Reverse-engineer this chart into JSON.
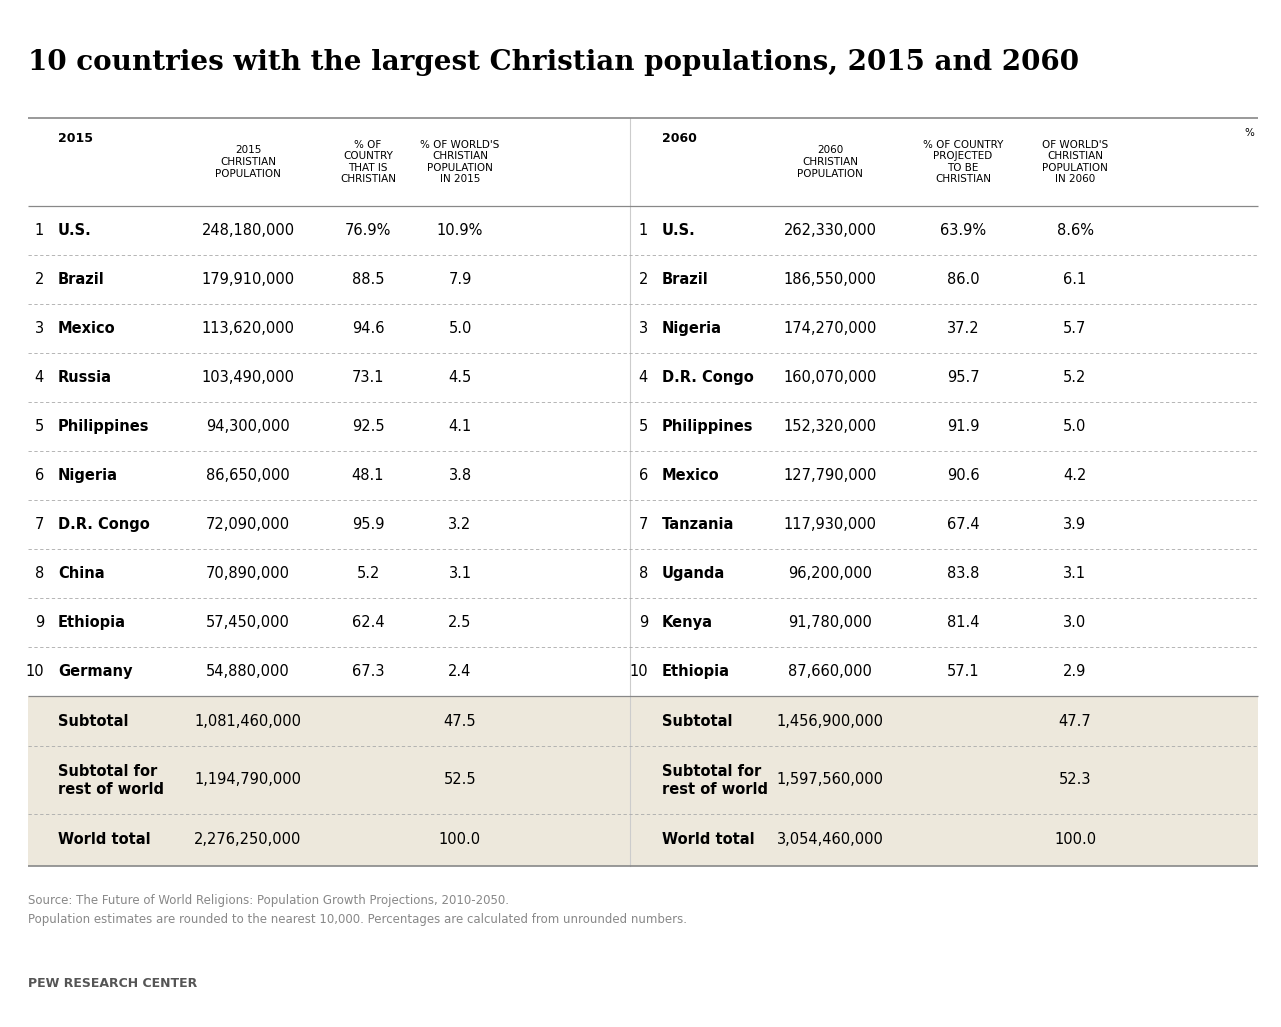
{
  "title": "10 countries with the largest Christian populations, 2015 and 2060",
  "bg_color": "#ffffff",
  "table_bg_color": "#ede8dc",
  "row_bg_white": "#ffffff",
  "title_color": "#000000",
  "source_text": "Source: The Future of World Religions: Population Growth Projections, 2010-2050.\nPopulation estimates are rounded to the nearest 10,000. Percentages are calculated from unrounded numbers.",
  "footer_text": "PEW RESEARCH CENTER",
  "rows_2015": [
    [
      "1",
      "U.S.",
      "248,180,000",
      "76.9%",
      "10.9%"
    ],
    [
      "2",
      "Brazil",
      "179,910,000",
      "88.5",
      "7.9"
    ],
    [
      "3",
      "Mexico",
      "113,620,000",
      "94.6",
      "5.0"
    ],
    [
      "4",
      "Russia",
      "103,490,000",
      "73.1",
      "4.5"
    ],
    [
      "5",
      "Philippines",
      "94,300,000",
      "92.5",
      "4.1"
    ],
    [
      "6",
      "Nigeria",
      "86,650,000",
      "48.1",
      "3.8"
    ],
    [
      "7",
      "D.R. Congo",
      "72,090,000",
      "95.9",
      "3.2"
    ],
    [
      "8",
      "China",
      "70,890,000",
      "5.2",
      "3.1"
    ],
    [
      "9",
      "Ethiopia",
      "57,450,000",
      "62.4",
      "2.5"
    ],
    [
      "10",
      "Germany",
      "54,880,000",
      "67.3",
      "2.4"
    ]
  ],
  "rows_2060": [
    [
      "1",
      "U.S.",
      "262,330,000",
      "63.9%",
      "8.6%"
    ],
    [
      "2",
      "Brazil",
      "186,550,000",
      "86.0",
      "6.1"
    ],
    [
      "3",
      "Nigeria",
      "174,270,000",
      "37.2",
      "5.7"
    ],
    [
      "4",
      "D.R. Congo",
      "160,070,000",
      "95.7",
      "5.2"
    ],
    [
      "5",
      "Philippines",
      "152,320,000",
      "91.9",
      "5.0"
    ],
    [
      "6",
      "Mexico",
      "127,790,000",
      "90.6",
      "4.2"
    ],
    [
      "7",
      "Tanzania",
      "117,930,000",
      "67.4",
      "3.9"
    ],
    [
      "8",
      "Uganda",
      "96,200,000",
      "83.8",
      "3.1"
    ],
    [
      "9",
      "Kenya",
      "91,780,000",
      "81.4",
      "3.0"
    ],
    [
      "10",
      "Ethiopia",
      "87,660,000",
      "57.1",
      "2.9"
    ]
  ],
  "subtotal_2015": [
    "Subtotal",
    "1,081,460,000",
    "47.5"
  ],
  "subtotal_rest_2015": [
    "Subtotal for\nrest of world",
    "1,194,790,000",
    "52.5"
  ],
  "world_total_2015": [
    "World total",
    "2,276,250,000",
    "100.0"
  ],
  "subtotal_2060": [
    "Subtotal",
    "1,456,900,000",
    "47.7"
  ],
  "subtotal_rest_2060": [
    "Subtotal for\nrest of world",
    "1,597,560,000",
    "52.3"
  ],
  "world_total_2060": [
    "World total",
    "3,054,460,000",
    "100.0"
  ],
  "line_color": "#999999",
  "dot_color": "#aaaaaa",
  "text_color": "#000000",
  "source_color": "#888888",
  "footer_color": "#555555"
}
